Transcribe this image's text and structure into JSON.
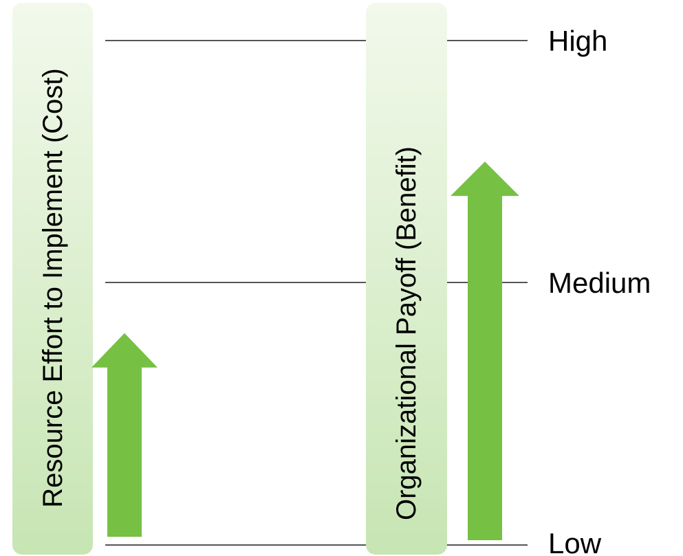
{
  "levels": {
    "high": "High",
    "medium": "Medium",
    "low": "Low"
  },
  "bars": {
    "cost": {
      "label": "Resource Effort to Implement (Cost)",
      "level": 0.42
    },
    "benefit": {
      "label": "Organizational Payoff (Benefit)",
      "level": 0.76
    }
  },
  "colors": {
    "arrow": "#76c043",
    "bar_top": "#f2f9ec",
    "bar_bottom": "#c7e5b3",
    "gridline": "#555555"
  }
}
